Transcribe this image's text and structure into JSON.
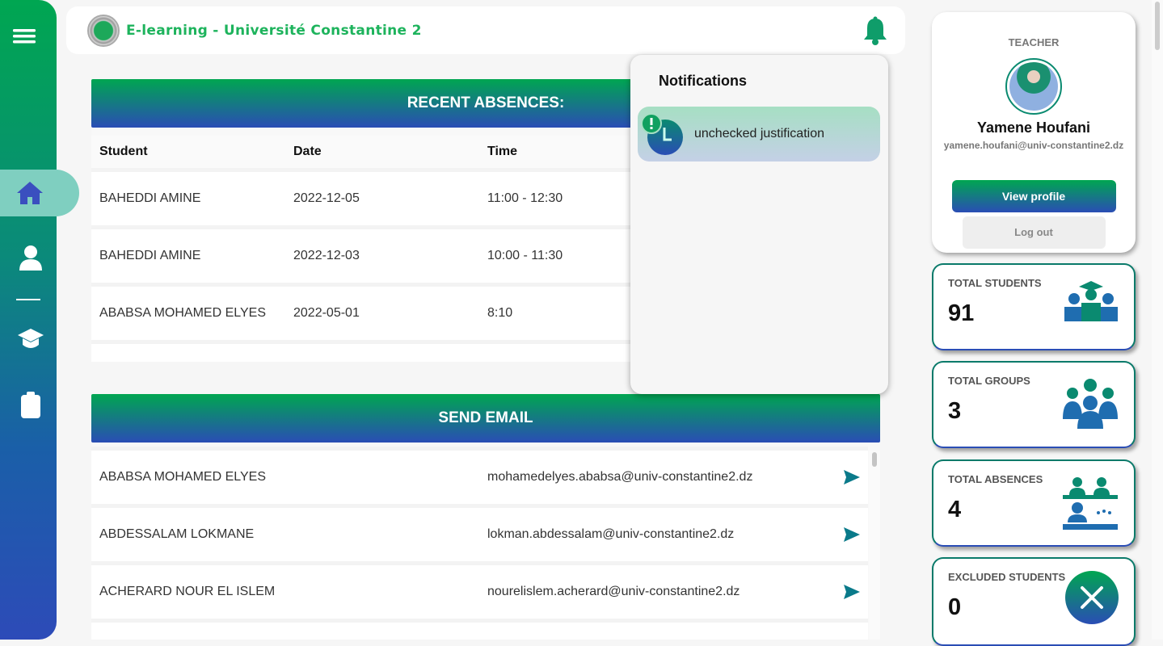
{
  "header": {
    "title": "E-learning - Université Constantine 2"
  },
  "sidebar": {
    "items": [
      {
        "icon": "menu-icon"
      },
      {
        "icon": "home-icon",
        "active": true
      },
      {
        "icon": "user-icon"
      },
      {
        "icon": "graduation-cap-icon"
      },
      {
        "icon": "clipboard-icon"
      }
    ]
  },
  "absences": {
    "title": "RECENT ABSENCES:",
    "columns": [
      "Student",
      "Date",
      "Time"
    ],
    "rows": [
      {
        "student": "BAHEDDI AMINE",
        "date": "2022-12-05",
        "time": "11:00 - 12:30"
      },
      {
        "student": "BAHEDDI AMINE",
        "date": "2022-12-03",
        "time": "10:00 - 11:30"
      },
      {
        "student": "ABABSA MOHAMED ELYES",
        "date": "2022-05-01",
        "time": "8:10"
      }
    ]
  },
  "email": {
    "title": "SEND EMAIL",
    "rows": [
      {
        "student": "ABABSA MOHAMED ELYES",
        "email": "mohamedelyes.ababsa@univ-constantine2.dz"
      },
      {
        "student": "ABDESSALAM LOKMANE",
        "email": "lokman.abdessalam@univ-constantine2.dz"
      },
      {
        "student": "ACHERARD NOUR EL ISLEM",
        "email": "nourelislem.acherard@univ-constantine2.dz"
      }
    ]
  },
  "notifications": {
    "title": "Notifications",
    "items": [
      {
        "text": "unchecked justification"
      }
    ]
  },
  "profile": {
    "role": "TEACHER",
    "name": "Yamene Houfani",
    "email": "yamene.houfani@univ-constantine2.dz",
    "view_profile": "View profile",
    "logout": "Log out"
  },
  "stats": [
    {
      "label": "TOTAL STUDENTS",
      "value": "91"
    },
    {
      "label": "TOTAL GROUPS",
      "value": "3"
    },
    {
      "label": "TOTAL ABSENCES",
      "value": "4"
    },
    {
      "label": "EXCLUDED STUDENTS",
      "value": "0"
    }
  ],
  "colors": {
    "green": "#00a651",
    "blue": "#2a4db5"
  }
}
